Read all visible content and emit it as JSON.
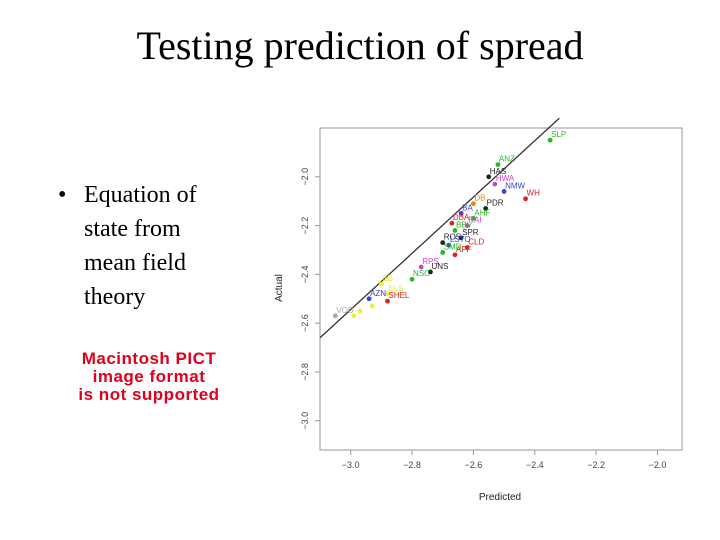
{
  "slide": {
    "title": "Testing prediction of spread",
    "bullet_marker": "•",
    "bullet_lines": [
      "Equation of",
      "state from",
      "mean field",
      "theory"
    ],
    "pict_placeholder": [
      "Macintosh PICT",
      "image format",
      "is not supported"
    ],
    "colors": {
      "placeholder_text": "#e0001b"
    }
  },
  "chart_data": {
    "type": "scatter",
    "title": "",
    "xlabel": "Predicted",
    "ylabel": "Actual",
    "xlim": [
      -3.1,
      -1.92
    ],
    "ylim": [
      -3.12,
      -1.8
    ],
    "xticks": [
      -3.0,
      -2.8,
      -2.6,
      -2.4,
      -2.2,
      -2.0
    ],
    "yticks": [
      -3.0,
      -2.8,
      -2.6,
      -2.4,
      -2.2,
      -2.0
    ],
    "xtick_labels": [
      "−3.0",
      "−2.8",
      "−2.6",
      "−2.4",
      "−2.2",
      "−2.0"
    ],
    "ytick_labels": [
      "−3.0",
      "−2.8",
      "−2.6",
      "−2.4",
      "−2.2",
      "−2.0"
    ],
    "fit_line": {
      "x": [
        -3.1,
        -2.32
      ],
      "y": [
        -2.66,
        -1.76
      ],
      "color": "#333333"
    },
    "points": [
      {
        "label": "SLP",
        "x": -2.35,
        "y": -1.85,
        "color": "#22bb22"
      },
      {
        "label": "ANZ",
        "x": -2.52,
        "y": -1.95,
        "color": "#22bb22"
      },
      {
        "label": "HAS",
        "x": -2.55,
        "y": -2.0,
        "color": "#222222"
      },
      {
        "label": "HWA",
        "x": -2.53,
        "y": -2.03,
        "color": "#cc44cc"
      },
      {
        "label": "NMW",
        "x": -2.5,
        "y": -2.06,
        "color": "#3344dd"
      },
      {
        "label": "WH",
        "x": -2.43,
        "y": -2.09,
        "color": "#dd2222"
      },
      {
        "label": "DB",
        "x": -2.6,
        "y": -2.11,
        "color": "#ee8800"
      },
      {
        "label": "PDR",
        "x": -2.56,
        "y": -2.13,
        "color": "#222222"
      },
      {
        "label": "BA",
        "x": -2.64,
        "y": -2.15,
        "color": "#3344dd"
      },
      {
        "label": "AHF",
        "x": -2.6,
        "y": -2.17,
        "color": "#22bb22"
      },
      {
        "label": "DBA",
        "x": -2.67,
        "y": -2.19,
        "color": "#dd2222"
      },
      {
        "label": "RAI",
        "x": -2.62,
        "y": -2.2,
        "color": "#cc44cc"
      },
      {
        "label": "BBV",
        "x": -2.66,
        "y": -2.22,
        "color": "#22bb22"
      },
      {
        "label": "SPR",
        "x": -2.64,
        "y": -2.25,
        "color": "#222222"
      },
      {
        "label": "ROS",
        "x": -2.7,
        "y": -2.27,
        "color": "#222222"
      },
      {
        "label": "LSTO",
        "x": -2.68,
        "y": -2.28,
        "color": "#3344dd"
      },
      {
        "label": "CLD",
        "x": -2.62,
        "y": -2.29,
        "color": "#dd2222"
      },
      {
        "label": "SMD",
        "x": -2.7,
        "y": -2.31,
        "color": "#22bb22"
      },
      {
        "label": "AFF",
        "x": -2.66,
        "y": -2.32,
        "color": "#dd2222"
      },
      {
        "label": "RPS",
        "x": -2.77,
        "y": -2.37,
        "color": "#cc44cc"
      },
      {
        "label": "UNS",
        "x": -2.74,
        "y": -2.39,
        "color": "#222222"
      },
      {
        "label": "NSC",
        "x": -2.8,
        "y": -2.42,
        "color": "#22bb22"
      },
      {
        "label": "SB",
        "x": -2.9,
        "y": -2.44,
        "color": "#eeee33"
      },
      {
        "label": "ELS",
        "x": -2.88,
        "y": -2.48,
        "color": "#eeee33"
      },
      {
        "label": "AZN",
        "x": -2.94,
        "y": -2.5,
        "color": "#3344dd"
      },
      {
        "label": "SHEL",
        "x": -2.88,
        "y": -2.51,
        "color": "#dd2222"
      },
      {
        "label": "VOD",
        "x": -3.05,
        "y": -2.57,
        "color": "#aaaaaa"
      },
      {
        "label": "",
        "x": -2.97,
        "y": -2.55,
        "color": "#eeee33"
      },
      {
        "label": "",
        "x": -2.99,
        "y": -2.57,
        "color": "#eeee33"
      },
      {
        "label": "",
        "x": -2.93,
        "y": -2.53,
        "color": "#eeee33"
      }
    ]
  }
}
